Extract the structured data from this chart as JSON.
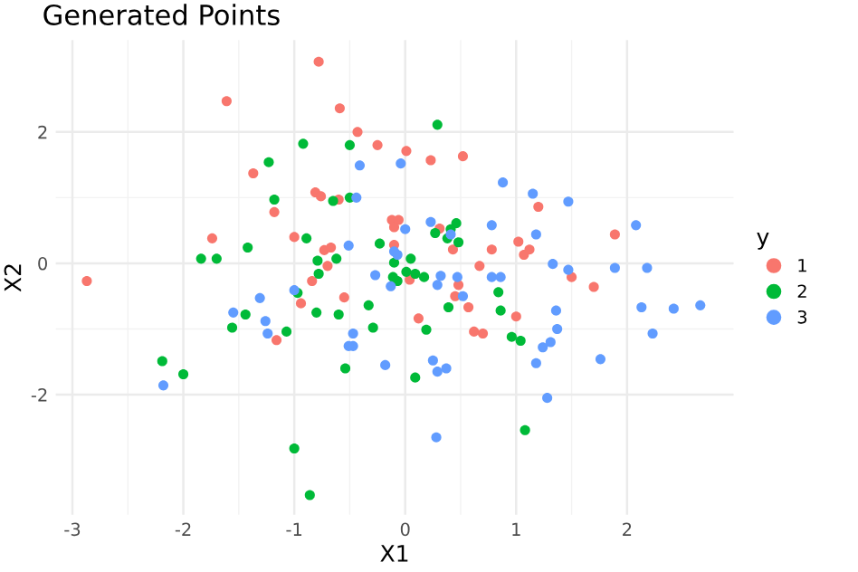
{
  "chart_data": {
    "type": "scatter",
    "title": "Generated Points",
    "xlabel": "X1",
    "ylabel": "X2",
    "legend_title": "y",
    "legend": "right",
    "grid": true,
    "marker": "circle",
    "xlim": [
      -3.15,
      2.96
    ],
    "ylim": [
      -3.83,
      3.4
    ],
    "xticks": [
      -3,
      -2,
      -1,
      0,
      1,
      2
    ],
    "yticks": [
      -2,
      0,
      2
    ],
    "series": [
      {
        "name": "1",
        "color": "#f8766d",
        "x": [
          -2.87,
          -1.61,
          -0.78,
          -0.59,
          -0.43,
          -0.25,
          -1.37,
          -1.18,
          -1.74,
          -1.0,
          -0.81,
          -0.76,
          -0.6,
          -0.73,
          -0.67,
          -0.7,
          -0.84,
          -0.94,
          -1.16,
          -0.55,
          0.01,
          0.23,
          0.52,
          1.2,
          -0.12,
          -0.06,
          -0.1,
          0.31,
          -0.1,
          0.43,
          0.78,
          1.02,
          1.12,
          1.07,
          1.89,
          0.67,
          1.5,
          1.7,
          0.04,
          0.48,
          0.45,
          0.57,
          0.12,
          0.62,
          0.7,
          1.0
        ],
        "values": [
          -0.27,
          2.47,
          3.07,
          2.36,
          2.0,
          1.8,
          1.37,
          0.78,
          0.38,
          0.4,
          1.08,
          1.02,
          0.97,
          0.2,
          0.24,
          -0.04,
          -0.27,
          -0.61,
          -1.17,
          -0.52,
          1.71,
          1.57,
          1.63,
          0.86,
          0.66,
          0.66,
          0.55,
          0.53,
          0.28,
          0.21,
          0.21,
          0.33,
          0.21,
          0.13,
          0.44,
          -0.04,
          -0.21,
          -0.36,
          -0.25,
          -0.33,
          -0.5,
          -0.67,
          -0.84,
          -1.04,
          -1.07,
          -0.81
        ]
      },
      {
        "name": "2",
        "color": "#00ba38",
        "x": [
          -0.92,
          -0.5,
          -1.23,
          -1.18,
          -0.5,
          -0.65,
          -0.89,
          -1.42,
          -1.84,
          -1.7,
          -0.79,
          -0.62,
          -0.23,
          -0.78,
          0.29,
          0.46,
          0.41,
          0.27,
          0.38,
          0.48,
          0.05,
          -0.1,
          0.01,
          0.09,
          0.17,
          -0.11,
          -0.07,
          0.84,
          0.86,
          0.39,
          0.19,
          0.96,
          1.04,
          -0.33,
          -0.29,
          0.09,
          1.08,
          -0.8,
          -0.6,
          -1.44,
          -1.56,
          -1.07,
          -0.54,
          -2.19,
          -2.0,
          -1.0,
          -0.86,
          -0.97
        ],
        "values": [
          1.82,
          1.8,
          1.54,
          0.97,
          1.0,
          0.95,
          0.38,
          0.24,
          0.07,
          0.07,
          0.04,
          0.07,
          0.3,
          -0.16,
          2.11,
          0.61,
          0.52,
          0.46,
          0.38,
          0.32,
          0.07,
          0.01,
          -0.13,
          -0.16,
          -0.21,
          -0.21,
          -0.27,
          -0.44,
          -0.72,
          -0.67,
          -1.01,
          -1.12,
          -1.18,
          -0.64,
          -0.98,
          -1.74,
          -2.54,
          -0.75,
          -0.78,
          -0.78,
          -0.98,
          -1.04,
          -1.6,
          -1.49,
          -1.69,
          -2.82,
          -3.53,
          -0.45
        ]
      },
      {
        "name": "3",
        "color": "#619cff",
        "x": [
          -0.41,
          -0.44,
          -0.51,
          -0.27,
          -0.04,
          0.88,
          1.15,
          1.47,
          2.08,
          0.78,
          1.18,
          0.0,
          0.23,
          0.41,
          -0.1,
          -0.07,
          1.33,
          1.47,
          1.89,
          2.18,
          0.78,
          0.32,
          0.47,
          -0.13,
          0.29,
          0.52,
          0.86,
          1.36,
          1.37,
          1.31,
          1.24,
          1.18,
          1.76,
          2.13,
          2.23,
          2.42,
          2.66,
          1.28,
          0.28,
          0.25,
          0.29,
          0.37,
          -0.18,
          -0.47,
          -0.47,
          -1.0,
          -1.31,
          -1.55,
          -1.26,
          -1.24,
          -0.51,
          -2.18
        ],
        "values": [
          1.49,
          1.0,
          0.27,
          -0.18,
          1.52,
          1.23,
          1.06,
          0.94,
          0.58,
          0.58,
          0.44,
          0.52,
          0.63,
          0.44,
          0.18,
          0.13,
          -0.01,
          -0.1,
          -0.07,
          -0.07,
          -0.21,
          -0.19,
          -0.21,
          -0.35,
          -0.33,
          -0.5,
          -0.21,
          -0.72,
          -1.0,
          -1.2,
          -1.28,
          -1.52,
          -1.46,
          -0.67,
          -1.07,
          -0.69,
          -0.64,
          -2.05,
          -2.65,
          -1.48,
          -1.65,
          -1.6,
          -1.55,
          -1.07,
          -1.26,
          -0.41,
          -0.53,
          -0.75,
          -0.88,
          -1.07,
          -1.26,
          -1.86
        ]
      }
    ]
  }
}
